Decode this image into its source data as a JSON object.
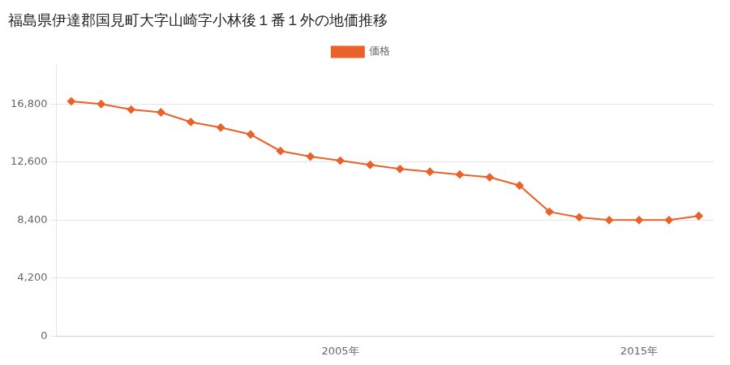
{
  "chart_data": {
    "type": "line",
    "title": "福島県伊達郡国見町大字山崎字小林後１番１外の地価推移",
    "x": [
      1996,
      1997,
      1998,
      1999,
      2000,
      2001,
      2002,
      2003,
      2004,
      2005,
      2006,
      2007,
      2008,
      2009,
      2010,
      2011,
      2012,
      2013,
      2014,
      2015,
      2016,
      2017
    ],
    "series": [
      {
        "name": "価格",
        "color": "#e8622a",
        "marker": "diamond",
        "values": [
          17000,
          16800,
          16400,
          16200,
          15500,
          15100,
          14600,
          13400,
          13000,
          12700,
          12400,
          12100,
          11900,
          11700,
          11500,
          10900,
          9000,
          8600,
          8400,
          8400,
          8400,
          8700
        ]
      }
    ],
    "xlim": [
      1995.5,
      2017.5
    ],
    "xticks": [
      {
        "value": 2005,
        "label": "2005年"
      },
      {
        "value": 2015,
        "label": "2015年"
      }
    ],
    "ylim": [
      0,
      19600
    ],
    "yticks": [
      0,
      {
        "value": 4200,
        "label": "4,200"
      },
      {
        "value": 8400,
        "label": "8,400"
      },
      {
        "value": 12600,
        "label": "12,600"
      },
      {
        "value": 16800,
        "label": "16,800"
      }
    ],
    "grid": "y",
    "legend": "top"
  }
}
